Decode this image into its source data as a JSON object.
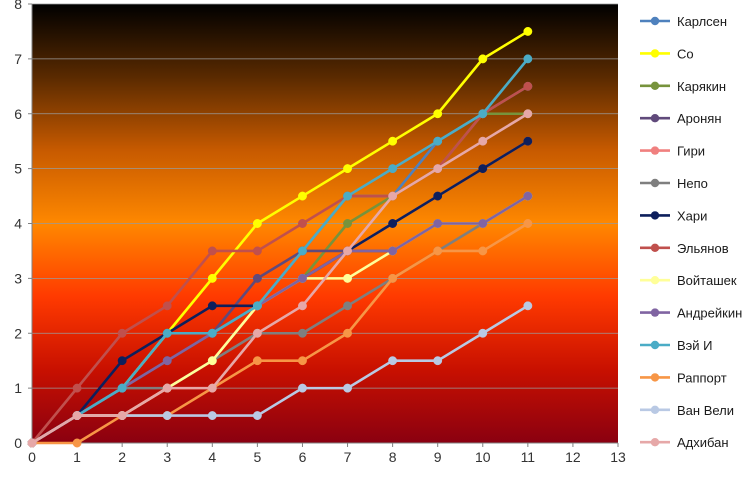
{
  "chart_data": {
    "type": "line",
    "title": "",
    "xlabel": "",
    "ylabel": "",
    "xlim": [
      0,
      13
    ],
    "ylim": [
      0,
      8
    ],
    "x_ticks": [
      "0",
      "1",
      "2",
      "3",
      "4",
      "5",
      "6",
      "7",
      "8",
      "9",
      "10",
      "11",
      "12",
      "13"
    ],
    "y_ticks": [
      "0",
      "1",
      "2",
      "3",
      "4",
      "5",
      "6",
      "7",
      "8"
    ],
    "grid": "horizontal",
    "legend_position": "right",
    "background_gradient": [
      "#000000",
      "#5a2a00",
      "#c75a00",
      "#ff8800",
      "#ff3a00",
      "#c81000",
      "#8a0010"
    ],
    "series": [
      {
        "name": "Карлсен",
        "color": "#4f81bd",
        "x": [
          0,
          1,
          2,
          3,
          4,
          5,
          6,
          7,
          8,
          9,
          10,
          11
        ],
        "y": [
          0,
          0.5,
          1,
          2,
          2,
          2.5,
          3.5,
          4.5,
          4.5,
          5.5,
          6,
          6.5
        ]
      },
      {
        "name": "Со",
        "color": "#ffff00",
        "x": [
          0,
          1,
          2,
          3,
          4,
          5,
          6,
          7,
          8,
          9,
          10,
          11
        ],
        "y": [
          0,
          0.5,
          1,
          2,
          3,
          4,
          4.5,
          5,
          5.5,
          6,
          7,
          7.5
        ]
      },
      {
        "name": "Карякин",
        "color": "#77933c",
        "x": [
          0,
          1,
          2,
          3,
          4,
          5,
          6,
          7,
          8,
          9,
          10,
          11
        ],
        "y": [
          0,
          0.5,
          1,
          1.5,
          2,
          2.5,
          3,
          4,
          4.5,
          5,
          6,
          6
        ]
      },
      {
        "name": "Аронян",
        "color": "#604a7b",
        "x": [
          0,
          1,
          2,
          3,
          4,
          5,
          6,
          7,
          8,
          9,
          10,
          11
        ],
        "y": [
          0,
          0.5,
          1,
          1.5,
          2,
          3,
          3.5,
          3.5,
          3.5,
          4,
          4,
          4.5
        ]
      },
      {
        "name": "Гири",
        "color": "#f0807f",
        "x": [
          0,
          1,
          2,
          3,
          4,
          5,
          6,
          7,
          8,
          9,
          10,
          11
        ],
        "y": [
          0,
          0.5,
          0.5,
          1,
          1.5,
          2.5,
          3,
          3.5,
          4,
          4.5,
          5,
          5.5
        ]
      },
      {
        "name": "Непо",
        "color": "#7f7f7f",
        "x": [
          0,
          1,
          2,
          3,
          4,
          5,
          6,
          7,
          8,
          9,
          10,
          11
        ],
        "y": [
          0,
          0.5,
          1,
          1,
          1.5,
          2,
          2,
          2.5,
          3,
          3.5,
          4,
          4.5
        ]
      },
      {
        "name": "Хари",
        "color": "#0d1f5c",
        "x": [
          0,
          1,
          2,
          3,
          4,
          5,
          6,
          7,
          8,
          9,
          10,
          11
        ],
        "y": [
          0,
          0.5,
          1.5,
          2,
          2.5,
          2.5,
          3,
          3.5,
          4,
          4.5,
          5,
          5.5
        ]
      },
      {
        "name": "Эльянов",
        "color": "#c0504d",
        "x": [
          0,
          1,
          2,
          3,
          4,
          5,
          6,
          7,
          8,
          9,
          10,
          11
        ],
        "y": [
          0,
          1,
          2,
          2.5,
          3.5,
          3.5,
          4,
          4.5,
          4.5,
          5,
          6,
          6.5
        ]
      },
      {
        "name": "Войташек",
        "color": "#ffff99",
        "x": [
          0,
          1,
          2,
          3,
          4,
          5,
          6,
          7,
          8,
          9,
          10,
          11
        ],
        "y": [
          0,
          0.5,
          0.5,
          1,
          1.5,
          2.5,
          3,
          3,
          3.5,
          4,
          4,
          4.5
        ]
      },
      {
        "name": "Андрейкин",
        "color": "#8064a2",
        "x": [
          0,
          1,
          2,
          3,
          4,
          5,
          6,
          7,
          8,
          9,
          10,
          11
        ],
        "y": [
          0,
          0.5,
          1,
          1.5,
          2,
          2.5,
          3,
          3.5,
          3.5,
          4,
          4,
          4.5
        ]
      },
      {
        "name": "Вэй И",
        "color": "#4bacc6",
        "x": [
          0,
          1,
          2,
          3,
          4,
          5,
          6,
          7,
          8,
          9,
          10,
          11
        ],
        "y": [
          0,
          0.5,
          1,
          2,
          2,
          2.5,
          3.5,
          4.5,
          5,
          5.5,
          6,
          7
        ]
      },
      {
        "name": "Раппорт",
        "color": "#f79646",
        "x": [
          0,
          1,
          2,
          3,
          4,
          5,
          6,
          7,
          8,
          9,
          10,
          11
        ],
        "y": [
          0,
          0,
          0.5,
          0.5,
          1,
          1.5,
          1.5,
          2,
          3,
          3.5,
          3.5,
          4
        ]
      },
      {
        "name": "Ван Вели",
        "color": "#b9c9e4",
        "x": [
          0,
          1,
          2,
          3,
          4,
          5,
          6,
          7,
          8,
          9,
          10,
          11
        ],
        "y": [
          0,
          0.5,
          0.5,
          0.5,
          0.5,
          0.5,
          1,
          1,
          1.5,
          1.5,
          2,
          2.5
        ]
      },
      {
        "name": "Адхибан",
        "color": "#e6a8a8",
        "x": [
          0,
          1,
          2,
          3,
          4,
          5,
          6,
          7,
          8,
          9,
          10,
          11
        ],
        "y": [
          0,
          0.5,
          0.5,
          1,
          1,
          2,
          2.5,
          3.5,
          4.5,
          5,
          5.5,
          6
        ]
      }
    ]
  }
}
